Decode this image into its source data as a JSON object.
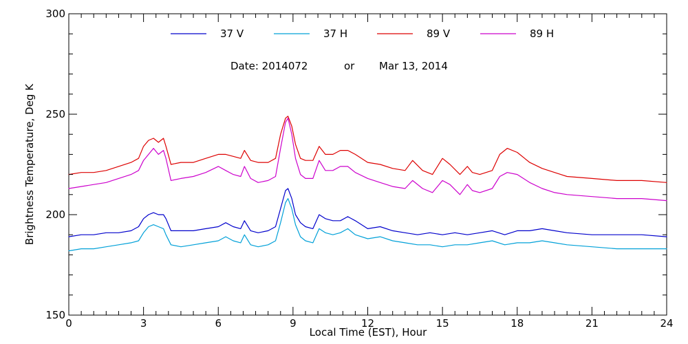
{
  "chart_data": {
    "type": "line",
    "title": "",
    "subtitle_parts": {
      "date_label": "Date: 2014072",
      "connector": "or",
      "date_text": "Mar 13, 2014"
    },
    "xlabel": "Local Time (EST), Hour",
    "ylabel": "Brightness Temperature, Deg K",
    "xlim": [
      0,
      24
    ],
    "ylim": [
      150,
      300
    ],
    "x_ticks": [
      0,
      3,
      6,
      9,
      12,
      15,
      18,
      21,
      24
    ],
    "y_ticks": [
      150,
      200,
      250,
      300
    ],
    "x_minor_step": 0.5,
    "y_minor_step": 10,
    "grid": false,
    "legend_position": "top-center",
    "series": [
      {
        "name": "37 V",
        "color": "#0000cc",
        "x": [
          0,
          0.5,
          1,
          1.5,
          2,
          2.5,
          2.8,
          3.0,
          3.2,
          3.4,
          3.6,
          3.8,
          3.9,
          4.1,
          4.5,
          5,
          5.5,
          6,
          6.3,
          6.6,
          6.9,
          7.05,
          7.3,
          7.6,
          8,
          8.3,
          8.5,
          8.7,
          8.8,
          8.95,
          9.1,
          9.3,
          9.5,
          9.8,
          10.05,
          10.3,
          10.6,
          10.9,
          11.2,
          11.5,
          12,
          12.5,
          13,
          13.5,
          14,
          14.5,
          15,
          15.5,
          16,
          16.5,
          17,
          17.5,
          18,
          18.5,
          19,
          19.5,
          20,
          21,
          22,
          23,
          24
        ],
        "values": [
          189,
          190,
          190,
          191,
          191,
          192,
          194,
          198,
          200,
          201,
          200,
          200,
          198,
          192,
          192,
          192,
          193,
          194,
          196,
          194,
          193,
          197,
          192,
          191,
          192,
          194,
          203,
          212,
          213,
          208,
          200,
          196,
          194,
          193,
          200,
          198,
          197,
          197,
          199,
          197,
          193,
          194,
          192,
          191,
          190,
          191,
          190,
          191,
          190,
          191,
          192,
          190,
          192,
          192,
          193,
          192,
          191,
          190,
          190,
          190,
          189
        ]
      },
      {
        "name": "37 H",
        "color": "#00a0d8",
        "x": [
          0,
          0.5,
          1,
          1.5,
          2,
          2.5,
          2.8,
          3.0,
          3.2,
          3.4,
          3.6,
          3.8,
          3.9,
          4.1,
          4.5,
          5,
          5.5,
          6,
          6.3,
          6.6,
          6.9,
          7.05,
          7.3,
          7.6,
          8,
          8.3,
          8.5,
          8.7,
          8.8,
          8.95,
          9.1,
          9.3,
          9.5,
          9.8,
          10.05,
          10.3,
          10.6,
          10.9,
          11.2,
          11.5,
          12,
          12.5,
          13,
          13.5,
          14,
          14.5,
          15,
          15.5,
          16,
          16.5,
          17,
          17.5,
          18,
          18.5,
          19,
          19.5,
          20,
          21,
          22,
          23,
          24
        ],
        "values": [
          182,
          183,
          183,
          184,
          185,
          186,
          187,
          191,
          194,
          195,
          194,
          193,
          190,
          185,
          184,
          185,
          186,
          187,
          189,
          187,
          186,
          190,
          185,
          184,
          185,
          187,
          196,
          206,
          208,
          203,
          195,
          189,
          187,
          186,
          193,
          191,
          190,
          191,
          193,
          190,
          188,
          189,
          187,
          186,
          185,
          185,
          184,
          185,
          185,
          186,
          187,
          185,
          186,
          186,
          187,
          186,
          185,
          184,
          183,
          183,
          183
        ]
      },
      {
        "name": "89 V",
        "color": "#dd0000",
        "x": [
          0,
          0.5,
          1,
          1.5,
          2,
          2.5,
          2.8,
          3.0,
          3.2,
          3.4,
          3.6,
          3.8,
          3.9,
          4.1,
          4.5,
          5,
          5.5,
          6,
          6.3,
          6.6,
          6.9,
          7.05,
          7.3,
          7.6,
          8,
          8.3,
          8.5,
          8.7,
          8.8,
          8.95,
          9.1,
          9.3,
          9.5,
          9.8,
          10.05,
          10.3,
          10.6,
          10.9,
          11.2,
          11.5,
          12,
          12.5,
          13,
          13.5,
          13.8,
          14.2,
          14.6,
          15,
          15.3,
          15.7,
          16,
          16.2,
          16.5,
          17,
          17.3,
          17.6,
          18,
          18.5,
          19,
          19.5,
          20,
          21,
          22,
          23,
          24
        ],
        "values": [
          220,
          221,
          221,
          222,
          224,
          226,
          228,
          234,
          237,
          238,
          236,
          238,
          234,
          225,
          226,
          226,
          228,
          230,
          230,
          229,
          228,
          232,
          227,
          226,
          226,
          228,
          240,
          248,
          249,
          244,
          235,
          228,
          227,
          227,
          234,
          230,
          230,
          232,
          232,
          230,
          226,
          225,
          223,
          222,
          227,
          222,
          220,
          228,
          225,
          220,
          224,
          221,
          220,
          222,
          230,
          233,
          231,
          226,
          223,
          221,
          219,
          218,
          217,
          217,
          216
        ]
      },
      {
        "name": "89 H",
        "color": "#cc00cc",
        "x": [
          0,
          0.5,
          1,
          1.5,
          2,
          2.5,
          2.8,
          3.0,
          3.2,
          3.4,
          3.6,
          3.8,
          3.9,
          4.1,
          4.5,
          5,
          5.5,
          6,
          6.3,
          6.6,
          6.9,
          7.05,
          7.3,
          7.6,
          8,
          8.3,
          8.5,
          8.7,
          8.8,
          8.95,
          9.1,
          9.3,
          9.5,
          9.8,
          10.05,
          10.3,
          10.6,
          10.9,
          11.2,
          11.5,
          12,
          12.5,
          13,
          13.5,
          13.8,
          14.2,
          14.6,
          15,
          15.3,
          15.7,
          16,
          16.2,
          16.5,
          17,
          17.3,
          17.6,
          18,
          18.5,
          19,
          19.5,
          20,
          21,
          22,
          23,
          24
        ],
        "values": [
          213,
          214,
          215,
          216,
          218,
          220,
          222,
          227,
          230,
          233,
          230,
          232,
          228,
          217,
          218,
          219,
          221,
          224,
          222,
          220,
          219,
          224,
          218,
          216,
          217,
          219,
          233,
          246,
          248,
          240,
          228,
          220,
          218,
          218,
          227,
          222,
          222,
          224,
          224,
          221,
          218,
          216,
          214,
          213,
          217,
          213,
          211,
          217,
          215,
          210,
          215,
          212,
          211,
          213,
          219,
          221,
          220,
          216,
          213,
          211,
          210,
          209,
          208,
          208,
          207
        ]
      }
    ]
  }
}
